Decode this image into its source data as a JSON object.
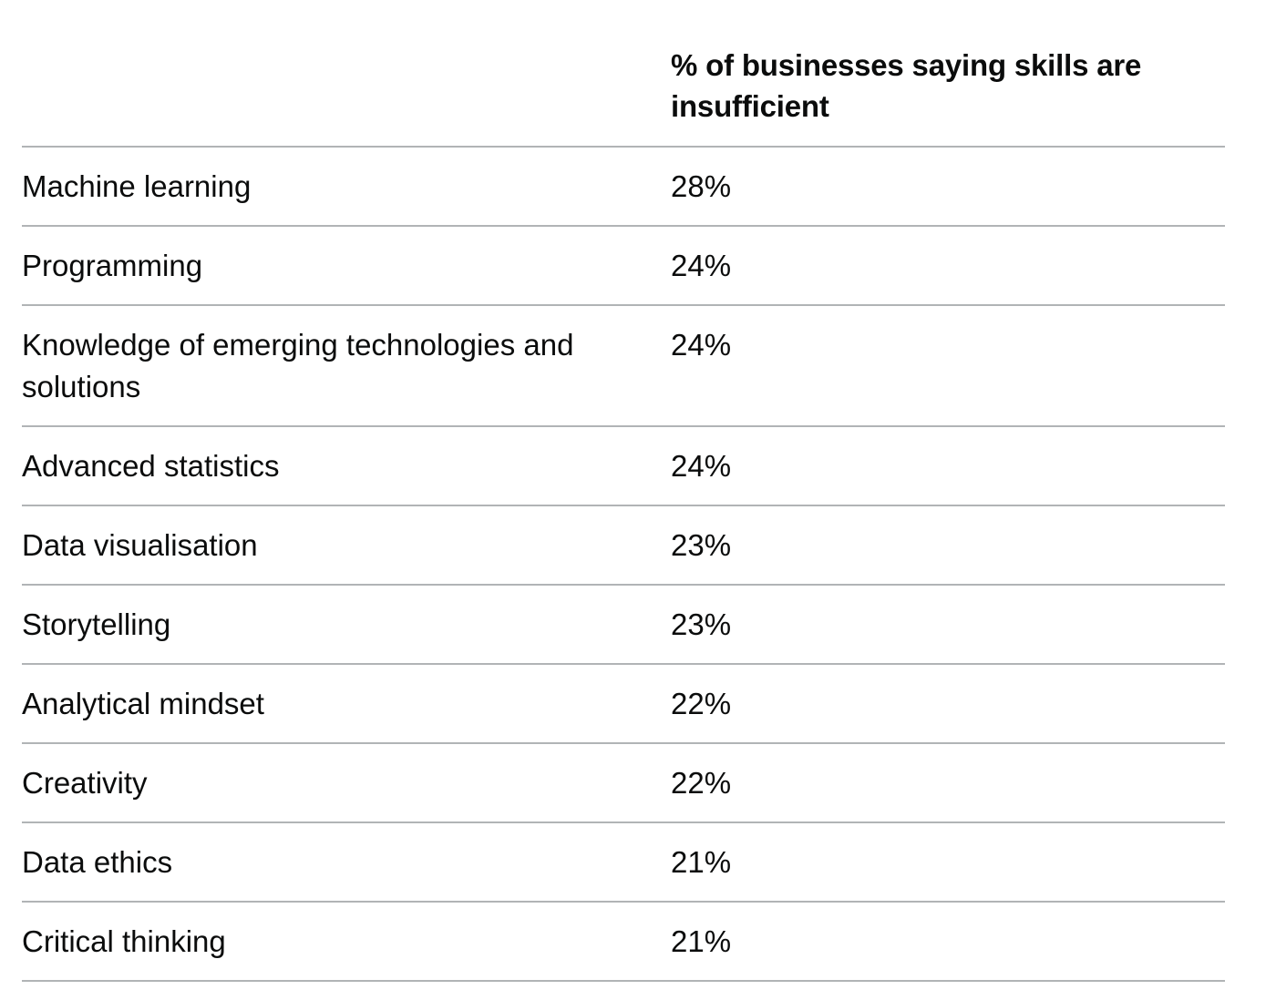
{
  "table": {
    "header": {
      "skill": "",
      "percentage": "% of businesses saying skills are insufficient"
    },
    "rows": [
      {
        "skill": "Machine learning",
        "percentage": "28%"
      },
      {
        "skill": "Programming",
        "percentage": "24%"
      },
      {
        "skill": "Knowledge of emerging technologies and solutions",
        "percentage": "24%"
      },
      {
        "skill": "Advanced statistics",
        "percentage": "24%"
      },
      {
        "skill": "Data visualisation",
        "percentage": "23%"
      },
      {
        "skill": "Storytelling",
        "percentage": "23%"
      },
      {
        "skill": "Analytical mindset",
        "percentage": "22%"
      },
      {
        "skill": "Creativity",
        "percentage": "22%"
      },
      {
        "skill": "Data ethics",
        "percentage": "21%"
      },
      {
        "skill": "Critical thinking",
        "percentage": "21%"
      }
    ]
  }
}
